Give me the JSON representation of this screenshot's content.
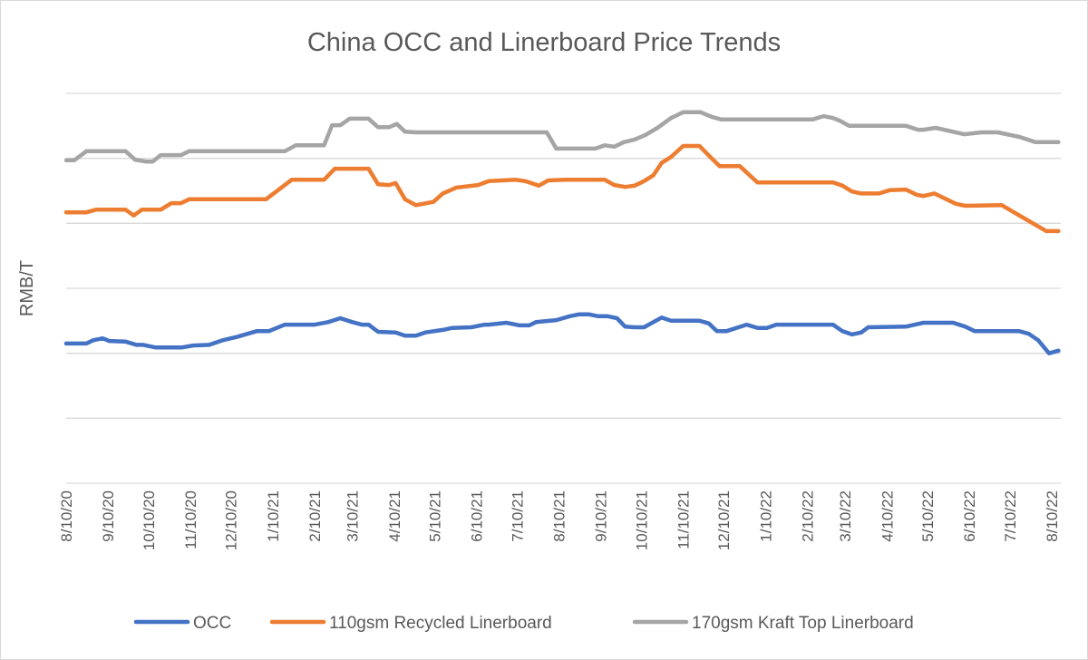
{
  "chart_data": {
    "type": "line",
    "title": "China OCC and Linerboard Price Trends",
    "xlabel": "",
    "ylabel": "RMB/T",
    "y_tick_labels_shown": false,
    "ylim": [
      0,
      6
    ],
    "xlim": [
      "2020-08-10",
      "2022-08-15"
    ],
    "grid": true,
    "legend": "bottom",
    "x_tick_labels": [
      "8/10/20",
      "9/10/20",
      "10/10/20",
      "11/10/20",
      "12/10/20",
      "1/10/21",
      "2/10/21",
      "3/10/21",
      "4/10/21",
      "5/10/21",
      "6/10/21",
      "7/10/21",
      "8/10/21",
      "9/10/21",
      "10/10/21",
      "11/10/21",
      "12/10/21",
      "1/10/22",
      "2/10/22",
      "3/10/22",
      "4/10/22",
      "5/10/22",
      "6/10/22",
      "7/10/22",
      "8/10/22"
    ],
    "x_tick_dates": [
      "2020-08-10",
      "2020-09-10",
      "2020-10-10",
      "2020-11-10",
      "2020-12-10",
      "2021-01-10",
      "2021-02-10",
      "2021-03-10",
      "2021-04-10",
      "2021-05-10",
      "2021-06-10",
      "2021-07-10",
      "2021-08-10",
      "2021-09-10",
      "2021-10-10",
      "2021-11-10",
      "2021-12-10",
      "2022-01-10",
      "2022-02-10",
      "2022-03-10",
      "2022-04-10",
      "2022-05-10",
      "2022-06-10",
      "2022-07-10",
      "2022-08-10"
    ],
    "series": [
      {
        "name": "OCC",
        "color": "#4472C4",
        "points": [
          [
            "2020-08-10",
            2.15
          ],
          [
            "2020-08-25",
            2.15
          ],
          [
            "2020-08-30",
            2.2
          ],
          [
            "2020-09-06",
            2.23
          ],
          [
            "2020-09-11",
            2.19
          ],
          [
            "2020-09-23",
            2.18
          ],
          [
            "2020-10-01",
            2.13
          ],
          [
            "2020-10-06",
            2.13
          ],
          [
            "2020-10-15",
            2.09
          ],
          [
            "2020-11-04",
            2.09
          ],
          [
            "2020-11-12",
            2.12
          ],
          [
            "2020-11-24",
            2.13
          ],
          [
            "2020-12-04",
            2.2
          ],
          [
            "2020-12-14",
            2.25
          ],
          [
            "2020-12-29",
            2.34
          ],
          [
            "2021-01-07",
            2.34
          ],
          [
            "2021-01-19",
            2.44
          ],
          [
            "2021-02-10",
            2.44
          ],
          [
            "2021-02-20",
            2.48
          ],
          [
            "2021-03-01",
            2.54
          ],
          [
            "2021-03-10",
            2.48
          ],
          [
            "2021-03-17",
            2.44
          ],
          [
            "2021-03-22",
            2.44
          ],
          [
            "2021-03-29",
            2.33
          ],
          [
            "2021-04-11",
            2.32
          ],
          [
            "2021-04-18",
            2.27
          ],
          [
            "2021-04-26",
            2.27
          ],
          [
            "2021-05-03",
            2.32
          ],
          [
            "2021-05-16",
            2.36
          ],
          [
            "2021-05-23",
            2.39
          ],
          [
            "2021-06-06",
            2.4
          ],
          [
            "2021-06-16",
            2.44
          ],
          [
            "2021-06-19",
            2.44
          ],
          [
            "2021-07-02",
            2.47
          ],
          [
            "2021-07-12",
            2.43
          ],
          [
            "2021-07-19",
            2.43
          ],
          [
            "2021-07-24",
            2.48
          ],
          [
            "2021-08-08",
            2.51
          ],
          [
            "2021-08-18",
            2.57
          ],
          [
            "2021-08-25",
            2.6
          ],
          [
            "2021-09-01",
            2.6
          ],
          [
            "2021-09-08",
            2.57
          ],
          [
            "2021-09-15",
            2.57
          ],
          [
            "2021-09-22",
            2.54
          ],
          [
            "2021-09-28",
            2.41
          ],
          [
            "2021-10-05",
            2.4
          ],
          [
            "2021-10-12",
            2.4
          ],
          [
            "2021-10-25",
            2.55
          ],
          [
            "2021-11-01",
            2.5
          ],
          [
            "2021-11-22",
            2.5
          ],
          [
            "2021-11-29",
            2.46
          ],
          [
            "2021-12-05",
            2.34
          ],
          [
            "2021-12-12",
            2.34
          ],
          [
            "2021-12-27",
            2.44
          ],
          [
            "2022-01-04",
            2.39
          ],
          [
            "2022-01-11",
            2.39
          ],
          [
            "2022-01-18",
            2.44
          ],
          [
            "2022-03-01",
            2.44
          ],
          [
            "2022-03-08",
            2.34
          ],
          [
            "2022-03-15",
            2.29
          ],
          [
            "2022-03-22",
            2.32
          ],
          [
            "2022-03-27",
            2.4
          ],
          [
            "2022-04-24",
            2.41
          ],
          [
            "2022-05-07",
            2.47
          ],
          [
            "2022-05-29",
            2.47
          ],
          [
            "2022-06-07",
            2.41
          ],
          [
            "2022-06-14",
            2.34
          ],
          [
            "2022-07-17",
            2.34
          ],
          [
            "2022-07-24",
            2.3
          ],
          [
            "2022-07-31",
            2.2
          ],
          [
            "2022-08-08",
            2.0
          ],
          [
            "2022-08-15",
            2.04
          ]
        ]
      },
      {
        "name": "110gsm Recycled Linerboard",
        "color": "#ED7D31",
        "points": [
          [
            "2020-08-10",
            4.17
          ],
          [
            "2020-08-25",
            4.17
          ],
          [
            "2020-09-01",
            4.21
          ],
          [
            "2020-09-23",
            4.21
          ],
          [
            "2020-09-29",
            4.12
          ],
          [
            "2020-10-05",
            4.21
          ],
          [
            "2020-10-19",
            4.21
          ],
          [
            "2020-10-27",
            4.31
          ],
          [
            "2020-11-03",
            4.31
          ],
          [
            "2020-11-09",
            4.37
          ],
          [
            "2021-01-05",
            4.37
          ],
          [
            "2021-01-24",
            4.67
          ],
          [
            "2021-02-17",
            4.67
          ],
          [
            "2021-02-25",
            4.84
          ],
          [
            "2021-03-22",
            4.84
          ],
          [
            "2021-03-29",
            4.6
          ],
          [
            "2021-04-06",
            4.59
          ],
          [
            "2021-04-11",
            4.62
          ],
          [
            "2021-04-18",
            4.37
          ],
          [
            "2021-04-26",
            4.28
          ],
          [
            "2021-05-09",
            4.33
          ],
          [
            "2021-05-16",
            4.46
          ],
          [
            "2021-05-26",
            4.55
          ],
          [
            "2021-06-11",
            4.59
          ],
          [
            "2021-06-19",
            4.65
          ],
          [
            "2021-07-09",
            4.67
          ],
          [
            "2021-07-16",
            4.65
          ],
          [
            "2021-07-26",
            4.58
          ],
          [
            "2021-08-02",
            4.66
          ],
          [
            "2021-08-15",
            4.67
          ],
          [
            "2021-09-13",
            4.67
          ],
          [
            "2021-09-20",
            4.59
          ],
          [
            "2021-09-28",
            4.56
          ],
          [
            "2021-10-05",
            4.58
          ],
          [
            "2021-10-12",
            4.65
          ],
          [
            "2021-10-19",
            4.74
          ],
          [
            "2021-10-25",
            4.93
          ],
          [
            "2021-11-01",
            5.02
          ],
          [
            "2021-11-10",
            5.19
          ],
          [
            "2021-11-22",
            5.19
          ],
          [
            "2021-12-02",
            4.98
          ],
          [
            "2021-12-07",
            4.88
          ],
          [
            "2021-12-22",
            4.88
          ],
          [
            "2022-01-04",
            4.63
          ],
          [
            "2022-03-01",
            4.63
          ],
          [
            "2022-03-08",
            4.58
          ],
          [
            "2022-03-15",
            4.49
          ],
          [
            "2022-03-22",
            4.46
          ],
          [
            "2022-04-04",
            4.46
          ],
          [
            "2022-04-12",
            4.51
          ],
          [
            "2022-04-24",
            4.52
          ],
          [
            "2022-05-02",
            4.44
          ],
          [
            "2022-05-07",
            4.42
          ],
          [
            "2022-05-15",
            4.46
          ],
          [
            "2022-05-31",
            4.3
          ],
          [
            "2022-06-07",
            4.27
          ],
          [
            "2022-07-04",
            4.28
          ],
          [
            "2022-07-17",
            4.12
          ],
          [
            "2022-07-27",
            4.0
          ],
          [
            "2022-08-06",
            3.88
          ],
          [
            "2022-08-15",
            3.88
          ]
        ]
      },
      {
        "name": "170gsm Kraft Top Linerboard",
        "color": "#A5A5A5",
        "points": [
          [
            "2020-08-10",
            4.97
          ],
          [
            "2020-08-16",
            4.97
          ],
          [
            "2020-08-25",
            5.11
          ],
          [
            "2020-09-23",
            5.11
          ],
          [
            "2020-09-30",
            4.98
          ],
          [
            "2020-10-08",
            4.95
          ],
          [
            "2020-10-13",
            4.95
          ],
          [
            "2020-10-19",
            5.05
          ],
          [
            "2020-11-03",
            5.05
          ],
          [
            "2020-11-09",
            5.11
          ],
          [
            "2021-01-19",
            5.11
          ],
          [
            "2021-01-27",
            5.2
          ],
          [
            "2021-02-17",
            5.2
          ],
          [
            "2021-02-23",
            5.51
          ],
          [
            "2021-03-01",
            5.51
          ],
          [
            "2021-03-08",
            5.61
          ],
          [
            "2021-03-22",
            5.61
          ],
          [
            "2021-03-29",
            5.48
          ],
          [
            "2021-04-06",
            5.48
          ],
          [
            "2021-04-12",
            5.53
          ],
          [
            "2021-04-18",
            5.41
          ],
          [
            "2021-04-26",
            5.4
          ],
          [
            "2021-08-01",
            5.4
          ],
          [
            "2021-08-08",
            5.15
          ],
          [
            "2021-09-06",
            5.15
          ],
          [
            "2021-09-13",
            5.2
          ],
          [
            "2021-09-20",
            5.18
          ],
          [
            "2021-09-27",
            5.25
          ],
          [
            "2021-10-05",
            5.29
          ],
          [
            "2021-10-13",
            5.36
          ],
          [
            "2021-10-22",
            5.47
          ],
          [
            "2021-11-01",
            5.62
          ],
          [
            "2021-11-10",
            5.71
          ],
          [
            "2021-11-23",
            5.71
          ],
          [
            "2021-12-01",
            5.64
          ],
          [
            "2021-12-08",
            5.6
          ],
          [
            "2022-02-14",
            5.6
          ],
          [
            "2022-02-22",
            5.65
          ],
          [
            "2022-03-01",
            5.62
          ],
          [
            "2022-03-06",
            5.58
          ],
          [
            "2022-03-13",
            5.5
          ],
          [
            "2022-04-24",
            5.5
          ],
          [
            "2022-05-03",
            5.44
          ],
          [
            "2022-05-07",
            5.44
          ],
          [
            "2022-05-16",
            5.47
          ],
          [
            "2022-06-06",
            5.37
          ],
          [
            "2022-06-19",
            5.4
          ],
          [
            "2022-07-01",
            5.4
          ],
          [
            "2022-07-17",
            5.33
          ],
          [
            "2022-07-29",
            5.25
          ],
          [
            "2022-08-15",
            5.25
          ]
        ]
      }
    ]
  }
}
